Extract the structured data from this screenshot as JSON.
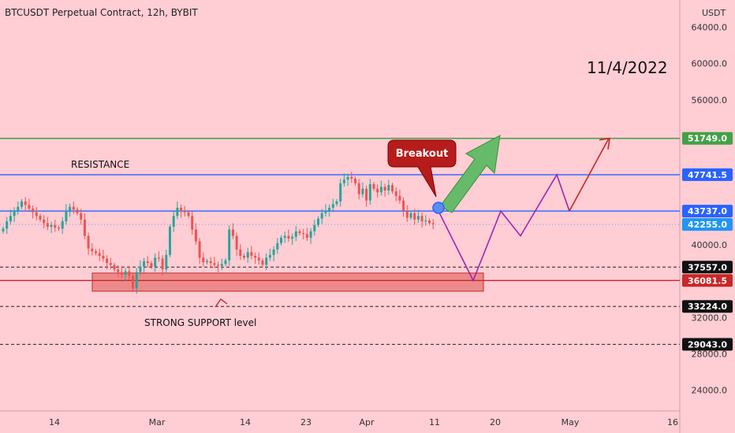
{
  "header": {
    "title": "BTCUSDT Perpetual Contract, 12h, BYBIT"
  },
  "colors": {
    "background": "#ffcdd4",
    "candle_up": "#26a69a",
    "candle_down": "#ef5350",
    "resistance": "#2962ff",
    "green_level": "#43a047",
    "support": "#c62828",
    "support_zone": "#e57373",
    "projection_purple": "#9c27b0",
    "projection_red": "#c62828",
    "breakout_label": "#b71c1c",
    "arrow_green": "#66bb6a"
  },
  "chart_data": {
    "type": "candlestick",
    "title": "BTCUSDT Perpetual Contract, 12h, BYBIT",
    "y_unit": "USDT",
    "ylim": [
      21700,
      67000
    ],
    "price_ticks": [
      64000,
      60000,
      56000,
      40000,
      32000,
      28000,
      24000
    ],
    "x_ticks": [
      "14",
      "Mar",
      "14",
      "23",
      "Apr",
      "11",
      "20",
      "May",
      "16"
    ],
    "levels": [
      {
        "value": 51749.0,
        "label": "51749.0",
        "color": "green",
        "style": "solid"
      },
      {
        "value": 47741.5,
        "label": "47741.5",
        "color": "blue",
        "style": "solid"
      },
      {
        "value": 43737.0,
        "label": "43737.0",
        "color": "blue",
        "style": "solid"
      },
      {
        "value": 42255.0,
        "label": "42255.0",
        "color": "lightblue",
        "style": "dotted"
      },
      {
        "value": 37557.0,
        "label": "37557.0",
        "color": "black",
        "style": "dashed"
      },
      {
        "value": 36081.5,
        "label": "36081.5",
        "color": "red",
        "style": "solid"
      },
      {
        "value": 33224.0,
        "label": "33224.0",
        "color": "black",
        "style": "dashed"
      },
      {
        "value": 29043.0,
        "label": "29043.0",
        "color": "black",
        "style": "dashed"
      }
    ],
    "closes": [
      41800,
      42600,
      43200,
      43800,
      44200,
      44800,
      44400,
      44000,
      43600,
      43200,
      42800,
      42400,
      42000,
      42200,
      41900,
      41800,
      42600,
      43800,
      44200,
      43900,
      43500,
      42800,
      41000,
      39600,
      39300,
      39100,
      38800,
      38500,
      38000,
      37800,
      37300,
      37000,
      36700,
      37100,
      36600,
      35200,
      37000,
      37600,
      38200,
      38000,
      37600,
      38600,
      38500,
      37300,
      38900,
      42000,
      43200,
      44100,
      43700,
      43600,
      43200,
      41700,
      40400,
      38600,
      38100,
      38200,
      38000,
      37800,
      37700,
      37900,
      38300,
      41700,
      41000,
      39500,
      38800,
      38600,
      39200,
      38800,
      38600,
      38300,
      37800,
      38600,
      38900,
      39500,
      40200,
      40800,
      41000,
      40700,
      40900,
      41500,
      41300,
      41200,
      40800,
      41500,
      42200,
      42900,
      43500,
      43800,
      44100,
      44500,
      44800,
      46800,
      47200,
      47500,
      47300,
      46800,
      45600,
      46200,
      44900,
      46700,
      46200,
      45800,
      46400,
      46000,
      46600,
      45900,
      45400,
      44900,
      43800,
      43000,
      43500,
      42800,
      43200,
      42600,
      42700,
      42400,
      42300
    ],
    "support_zone": {
      "low": 34900,
      "high": 36900
    },
    "projection_purple": [
      [
        43737,
        0
      ],
      [
        36081.5,
        1
      ],
      [
        43737,
        2
      ],
      [
        41000,
        3
      ],
      [
        47741.5,
        4
      ],
      [
        43737,
        5
      ]
    ],
    "projection_red": [
      [
        43737,
        5
      ],
      [
        51749,
        6
      ]
    ],
    "annotations": {
      "resistance": "RESISTANCE",
      "support": "STRONG SUPPORT level",
      "date": "11/4/2022",
      "breakout": "Breakout"
    }
  }
}
